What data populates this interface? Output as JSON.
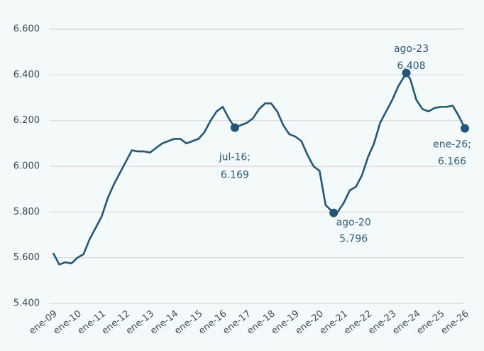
{
  "chart_data": {
    "type": "line",
    "xlim": [
      2009,
      2026
    ],
    "xticks": [
      {
        "value": 2009,
        "label": "ene-09"
      },
      {
        "value": 2010,
        "label": "ene-10"
      },
      {
        "value": 2011,
        "label": "ene-11"
      },
      {
        "value": 2012,
        "label": "ene-12"
      },
      {
        "value": 2013,
        "label": "ene-13"
      },
      {
        "value": 2014,
        "label": "ene-14"
      },
      {
        "value": 2015,
        "label": "ene-15"
      },
      {
        "value": 2016,
        "label": "ene-16"
      },
      {
        "value": 2017,
        "label": "ene-17"
      },
      {
        "value": 2018,
        "label": "ene-18"
      },
      {
        "value": 2019,
        "label": "ene-19"
      },
      {
        "value": 2020,
        "label": "ene-20"
      },
      {
        "value": 2021,
        "label": "ene-21"
      },
      {
        "value": 2022,
        "label": "ene-22"
      },
      {
        "value": 2023,
        "label": "ene-23"
      },
      {
        "value": 2024,
        "label": "ene-24"
      },
      {
        "value": 2025,
        "label": "ene-25"
      },
      {
        "value": 2026,
        "label": "ene-26"
      }
    ],
    "ylim": [
      5400,
      6600
    ],
    "yticks": [
      {
        "value": 5400,
        "label": "5.400"
      },
      {
        "value": 5600,
        "label": "5.600"
      },
      {
        "value": 5800,
        "label": "5.800"
      },
      {
        "value": 6000,
        "label": "6.000"
      },
      {
        "value": 6200,
        "label": "6.200"
      },
      {
        "value": 6400,
        "label": "6.400"
      },
      {
        "value": 6600,
        "label": "6.600"
      }
    ],
    "grid": true,
    "series": [
      {
        "color": "#235677",
        "x": [
          2009,
          2009.25,
          2009.5,
          2009.75,
          2010,
          2010.25,
          2010.5,
          2010.75,
          2011,
          2011.25,
          2011.5,
          2011.75,
          2012,
          2012.25,
          2012.5,
          2012.75,
          2013,
          2013.25,
          2013.5,
          2013.75,
          2014,
          2014.25,
          2014.5,
          2014.75,
          2015,
          2015.25,
          2015.5,
          2015.75,
          2016,
          2016.25,
          2016.5,
          2016.75,
          2017,
          2017.25,
          2017.5,
          2017.75,
          2018,
          2018.25,
          2018.5,
          2018.75,
          2019,
          2019.25,
          2019.5,
          2019.75,
          2020,
          2020.25,
          2020.583,
          2020.75,
          2021,
          2021.25,
          2021.5,
          2021.75,
          2022,
          2022.25,
          2022.5,
          2022.75,
          2023,
          2023.25,
          2023.583,
          2023.75,
          2024,
          2024.25,
          2024.5,
          2024.75,
          2025,
          2025.25,
          2025.5,
          2025.75,
          2026
        ],
        "values": [
          5620,
          5570,
          5580,
          5575,
          5600,
          5615,
          5680,
          5730,
          5780,
          5860,
          5920,
          5970,
          6020,
          6070,
          6065,
          6065,
          6060,
          6080,
          6100,
          6110,
          6120,
          6120,
          6100,
          6110,
          6120,
          6150,
          6200,
          6240,
          6260,
          6210,
          6169,
          6180,
          6190,
          6210,
          6250,
          6275,
          6275,
          6240,
          6180,
          6140,
          6130,
          6110,
          6050,
          6000,
          5980,
          5830,
          5796,
          5800,
          5840,
          5895,
          5910,
          5960,
          6040,
          6100,
          6190,
          6240,
          6290,
          6350,
          6408,
          6380,
          6290,
          6250,
          6240,
          6255,
          6260,
          6260,
          6265,
          6220,
          6166
        ]
      }
    ],
    "annotations": [
      {
        "x": 2016.5,
        "y": 6169,
        "label": "jul-16;",
        "value_label": "6.169"
      },
      {
        "x": 2020.583,
        "y": 5796,
        "label": "ago-20",
        "value_label": "5.796"
      },
      {
        "x": 2023.583,
        "y": 6408,
        "label": "ago-23",
        "value_label": "6.408"
      },
      {
        "x": 2026,
        "y": 6166,
        "label": "ene-26;",
        "value_label": "6.166"
      }
    ]
  }
}
